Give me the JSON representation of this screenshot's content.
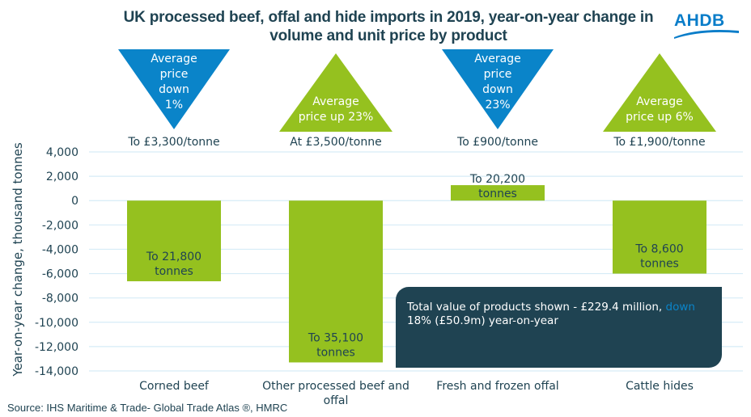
{
  "title": "UK processed beef, offal and hide imports in 2019, year-on-year change in volume and unit price by product",
  "logo": {
    "text": "AHDB",
    "icon": "ahdb-wave-logo"
  },
  "source": "Source: IHS Maritime & Trade- Global Trade Atlas ®, HMRC",
  "colors": {
    "bar": "#95c11f",
    "price_down": "#0a84c9",
    "price_up": "#95c11f",
    "text": "#1f4352",
    "grid": "#d6ecf7",
    "callout_bg": "#1f4352",
    "callout_highlight": "#0a84c9"
  },
  "callout": {
    "text_before": "Total value of products shown - £229.4 million, ",
    "highlight": "down",
    "text_after": " 18% (£50.9m) year-on-year"
  },
  "chart_data": {
    "type": "bar",
    "title": "UK processed beef, offal and hide imports in 2019, year-on-year change in volume and unit price by product",
    "xlabel": "",
    "ylabel": "Year-on-year change, thousand tonnes",
    "ylim": [
      -14000,
      4000
    ],
    "yticks": [
      4000,
      2000,
      0,
      -2000,
      -4000,
      -6000,
      -8000,
      -10000,
      -12000,
      -14000
    ],
    "ytick_labels": [
      "4,000",
      "2,000",
      "0",
      "-2,000",
      "-4,000",
      "-6,000",
      "-8,000",
      "-10,000",
      "-12,000",
      "-14,000"
    ],
    "grid": true,
    "legend": "none",
    "categories": [
      [
        "Corned beef"
      ],
      [
        "Other processed beef and",
        "offal"
      ],
      [
        "Fresh and frozen offal"
      ],
      [
        "Cattle hides"
      ]
    ],
    "values": [
      -6630,
      -13300,
      1270,
      -6000
    ],
    "bar_labels": [
      [
        "To 21,800",
        "tonnes"
      ],
      [
        "To 35,100",
        "tonnes"
      ],
      [
        "To 20,200",
        "tonnes"
      ],
      [
        "To 8,600",
        "tonnes"
      ]
    ],
    "price_annotations": [
      {
        "direction": "down",
        "lines": [
          "Average",
          "price",
          "down",
          "1%"
        ],
        "price": "To £3,300/tonne"
      },
      {
        "direction": "up",
        "lines": [
          "Average",
          "price up 23%"
        ],
        "price": "At £3,500/tonne"
      },
      {
        "direction": "down",
        "lines": [
          "Average",
          "price",
          "down",
          "23%"
        ],
        "price": "To £900/tonne"
      },
      {
        "direction": "up",
        "lines": [
          "Average",
          "price up 6%"
        ],
        "price": "To £1,900/tonne"
      }
    ]
  }
}
